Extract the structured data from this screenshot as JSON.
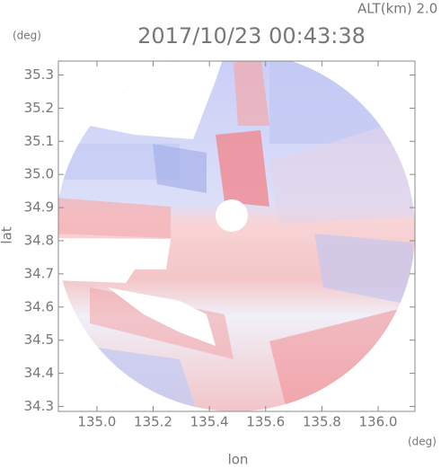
{
  "chart_data": {
    "type": "heatmap",
    "title": "2017/10/23 00:43:38",
    "subtitle": "ALT(km) 2.0",
    "x_label": "lon",
    "x_unit": "(deg)",
    "y_label": "lat",
    "y_unit": "(deg)",
    "xlim": [
      134.863,
      136.131
    ],
    "ylim": [
      34.285,
      35.342
    ],
    "xticks": [
      {
        "value": 135.0,
        "label": "135.0"
      },
      {
        "value": 135.2,
        "label": "135.2"
      },
      {
        "value": 135.4,
        "label": "135.4"
      },
      {
        "value": 135.6,
        "label": "135.6"
      },
      {
        "value": 135.8,
        "label": "135.8"
      },
      {
        "value": 136.0,
        "label": "136.0"
      }
    ],
    "yticks": [
      {
        "value": 34.3,
        "label": "34.3"
      },
      {
        "value": 34.4,
        "label": "34.4"
      },
      {
        "value": 34.5,
        "label": "34.5"
      },
      {
        "value": 34.6,
        "label": "34.6"
      },
      {
        "value": 34.7,
        "label": "34.7"
      },
      {
        "value": 34.8,
        "label": "34.8"
      },
      {
        "value": 34.9,
        "label": "34.9"
      },
      {
        "value": 35.0,
        "label": "35.0"
      },
      {
        "value": 35.1,
        "label": "35.1"
      },
      {
        "value": 35.2,
        "label": "35.2"
      },
      {
        "value": 35.3,
        "label": "35.3"
      }
    ]
  }
}
